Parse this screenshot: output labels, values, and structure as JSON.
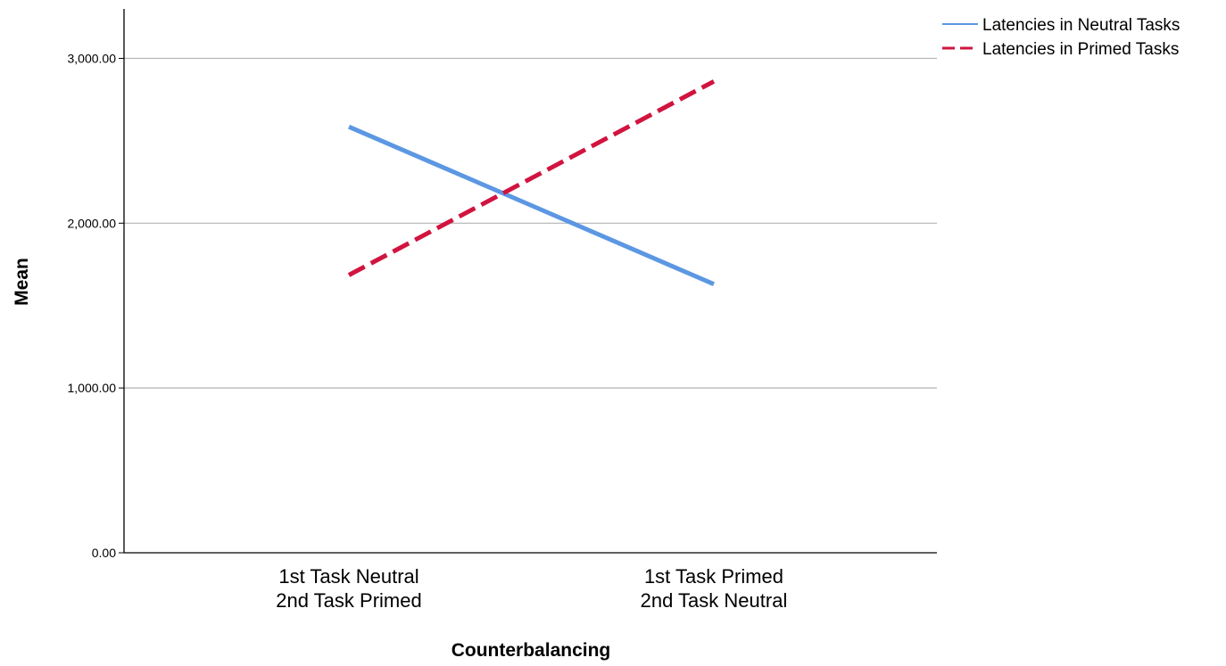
{
  "chart_data": {
    "type": "line",
    "categories": [
      [
        "1st Task Neutral",
        "2nd Task Primed"
      ],
      [
        "1st Task Primed",
        "2nd Task Neutral"
      ]
    ],
    "series": [
      {
        "name": "Latencies in Neutral Tasks",
        "values": [
          2585,
          1630
        ],
        "color": "#5c97e2",
        "dash": "solid"
      },
      {
        "name": "Latencies in Primed Tasks",
        "values": [
          1685,
          2860
        ],
        "color": "#d1143f",
        "dash": "dashed"
      }
    ],
    "xlabel": "Counterbalancing",
    "ylabel": "Mean",
    "ylim": [
      0,
      3300
    ],
    "yticks": [
      {
        "value": 0,
        "label": "0.00"
      },
      {
        "value": 1000,
        "label": "1,000.00"
      },
      {
        "value": 2000,
        "label": "2,000.00"
      },
      {
        "value": 3000,
        "label": "3,000.00"
      }
    ],
    "grid": true,
    "legend_position": "top-right"
  }
}
